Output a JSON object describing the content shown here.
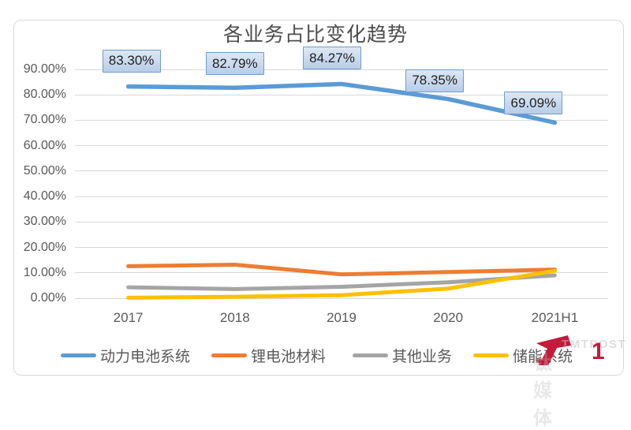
{
  "chart_data": {
    "type": "line",
    "title": "各业务占比变化趋势",
    "categories": [
      "2017",
      "2018",
      "2019",
      "2020",
      "2021H1"
    ],
    "series": [
      {
        "name": "动力电池系统",
        "color": "#5B9BD5",
        "values": [
          83.3,
          82.79,
          84.27,
          78.35,
          69.09
        ],
        "labels": [
          "83.30%",
          "82.79%",
          "84.27%",
          "78.35%",
          "69.09%"
        ]
      },
      {
        "name": "锂电池材料",
        "color": "#ED7D31",
        "values": [
          12.6,
          13.2,
          9.4,
          10.3,
          11.3
        ]
      },
      {
        "name": "其他业务",
        "color": "#A5A5A5",
        "values": [
          4.3,
          3.6,
          4.5,
          6.3,
          9.0
        ]
      },
      {
        "name": "储能系统",
        "color": "#FFC000",
        "values": [
          0.2,
          0.6,
          1.2,
          3.8,
          10.8
        ]
      }
    ],
    "y_ticks": [
      "0.00%",
      "10.00%",
      "20.00%",
      "30.00%",
      "40.00%",
      "50.00%",
      "60.00%",
      "70.00%",
      "80.00%",
      "90.00%"
    ],
    "ylim": [
      0,
      90
    ],
    "xlabel": "",
    "ylabel": "",
    "grid": true,
    "legend_position": "bottom",
    "label_box_colors": {
      "fill": "#c3d5ec",
      "border": "#6f9bd1"
    },
    "gridline_color": "#d9d9d9"
  },
  "watermark": {
    "brand": "TMTPOST",
    "brand_cn": "钛媒体",
    "red_mark": "1",
    "logo_color": "#c51a3b"
  }
}
